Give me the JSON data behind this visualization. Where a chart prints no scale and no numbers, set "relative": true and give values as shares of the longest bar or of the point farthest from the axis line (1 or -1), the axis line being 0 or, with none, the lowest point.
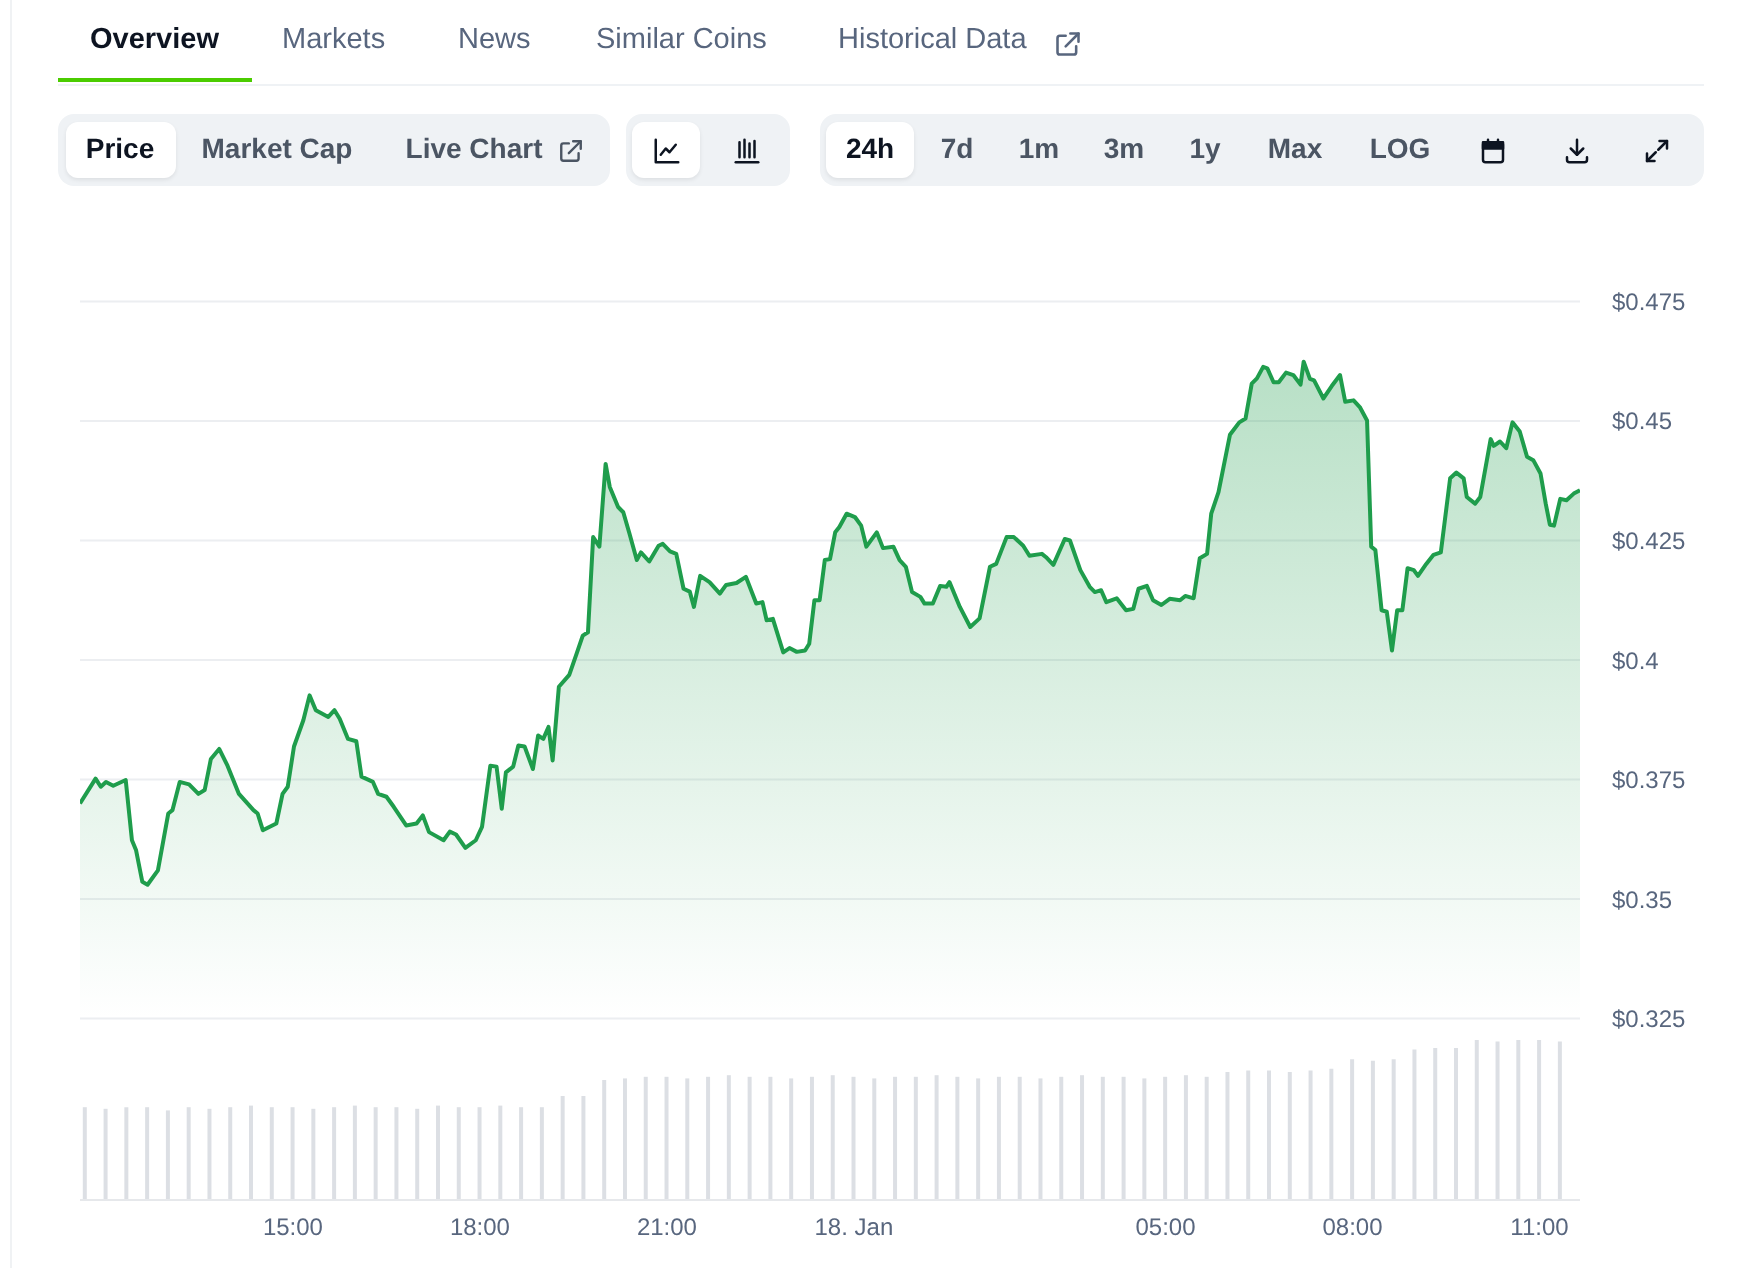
{
  "chart_data": [
    {
      "type": "area",
      "annotations": [
        "Overview",
        "Markets",
        "News",
        "Similar Coins",
        "Historical Data",
        "Price",
        "Market Cap",
        "Live Chart",
        "24h",
        "7d",
        "1m",
        "3m",
        "1y",
        "Max",
        "LOG"
      ],
      "x": [
        "--01-17T11:35",
        "--01-17T11:50",
        "--01-17T11:55",
        "--01-17T12:00",
        "--01-17T12:07",
        "--01-17T12:19",
        "--01-17T12:25",
        "--01-17T12:29",
        "--01-17T12:35",
        "--01-17T12:40",
        "--01-17T12:50",
        "--01-17T13:00",
        "--01-17T13:04",
        "--01-17T13:11",
        "--01-17T13:20",
        "--01-17T13:29",
        "--01-17T13:35",
        "--01-17T13:41",
        "--01-17T13:49",
        "--01-17T13:57",
        "--01-17T14:08",
        "--01-17T14:22",
        "--01-17T14:26",
        "--01-17T14:31",
        "--01-17T14:44",
        "--01-17T14:50",
        "--01-17T14:55",
        "--01-17T15:01",
        "--01-17T15:10",
        "--01-17T15:16",
        "--01-17T15:22",
        "--01-17T15:34",
        "--01-17T15:40",
        "--01-17T15:45",
        "--01-17T15:53",
        "--01-17T16:01",
        "--01-17T16:06",
        "--01-17T16:17",
        "--01-17T16:22",
        "--01-17T16:30",
        "--01-17T16:37",
        "--01-17T16:49",
        "--01-17T16:59",
        "--01-17T17:05",
        "--01-17T17:11",
        "--01-17T17:25",
        "--01-17T17:31",
        "--01-17T17:37",
        "--01-17T17:46",
        "--01-17T17:56",
        "--01-17T18:02",
        "--01-17T18:10",
        "--01-17T18:16",
        "--01-17T18:21",
        "--01-17T18:25",
        "--01-17T18:32",
        "--01-17T18:37",
        "--01-17T18:43",
        "--01-17T18:51",
        "--01-17T18:56",
        "--01-17T19:01",
        "--01-17T19:06",
        "--01-17T19:10",
        "--01-17T19:16",
        "--01-17T19:26",
        "--01-17T19:33",
        "--01-17T19:39",
        "--01-17T19:44",
        "--01-17T19:49",
        "--01-17T19:55",
        "--01-17T20:01",
        "--01-17T20:05",
        "--01-17T20:13",
        "--01-17T20:18",
        "--01-17T20:24",
        "--01-17T20:31",
        "--01-17T20:35",
        "--01-17T20:43",
        "--01-17T20:52",
        "--01-17T20:56",
        "--01-17T21:03",
        "--01-17T21:09",
        "--01-17T21:16",
        "--01-17T21:22",
        "--01-17T21:26",
        "--01-17T21:32",
        "--01-17T21:41",
        "--01-17T21:51",
        "--01-17T21:57",
        "--01-17T22:07",
        "--01-17T22:16",
        "--01-17T22:26",
        "--01-17T22:32",
        "--01-17T22:36",
        "--01-17T22:42",
        "--01-17T22:52",
        "--01-17T22:58",
        "--01-17T23:05",
        "--01-17T23:13",
        "--01-17T23:17",
        "--01-17T23:22",
        "--01-17T23:27",
        "--01-17T23:32",
        "--01-17T23:37",
        "--01-17T23:42",
        "--01-17T23:46",
        "--01-17T23:53",
        "--01-18T00:01",
        "--01-18T00:07",
        "--01-18T00:12",
        "--01-18T00:22",
        "--01-18T00:28",
        "--01-18T00:38",
        "--01-18T00:44",
        "--01-18T00:50",
        "--01-18T00:56",
        "--01-18T01:04",
        "--01-18T01:08",
        "--01-18T01:16",
        "--01-18T01:23",
        "--01-18T01:29",
        "--01-18T01:32",
        "--01-18T01:42",
        "--01-18T01:52",
        "--01-18T02:01",
        "--01-18T02:11",
        "--01-18T02:17",
        "--01-18T02:27",
        "--01-18T02:34",
        "--01-18T02:43",
        "--01-18T02:49",
        "--01-18T03:01",
        "--01-18T03:05",
        "--01-18T03:12",
        "--01-18T03:23",
        "--01-18T03:28",
        "--01-18T03:38",
        "--01-18T03:47",
        "--01-18T03:52",
        "--01-18T03:58",
        "--01-18T04:03",
        "--01-18T04:13",
        "--01-18T04:22",
        "--01-18T04:29",
        "--01-18T04:34",
        "--01-18T04:42",
        "--01-18T04:48",
        "--01-18T04:56",
        "--01-18T05:04",
        "--01-18T05:14",
        "--01-18T05:19",
        "--01-18T05:27",
        "--01-18T05:33",
        "--01-18T05:40",
        "--01-18T05:44",
        "--01-18T05:51",
        "--01-18T06:02",
        "--01-18T06:11",
        "--01-18T06:17",
        "--01-18T06:23",
        "--01-18T06:28",
        "--01-18T06:34",
        "--01-18T06:38",
        "--01-18T06:44",
        "--01-18T06:49",
        "--01-18T06:56",
        "--01-18T07:03",
        "--01-18T07:10",
        "--01-18T07:13",
        "--01-18T07:19",
        "--01-18T07:23",
        "--01-18T07:32",
        "--01-18T07:40",
        "--01-18T07:48",
        "--01-18T07:53",
        "--01-18T08:01",
        "--01-18T08:07",
        "--01-18T08:14",
        "--01-18T08:18",
        "--01-18T08:22",
        "--01-18T08:28",
        "--01-18T08:33",
        "--01-18T08:38",
        "--01-18T08:43",
        "--01-18T08:48",
        "--01-18T08:53",
        "--01-18T08:59",
        "--01-18T09:03",
        "--01-18T09:11",
        "--01-18T09:18",
        "--01-18T09:25",
        "--01-18T09:34",
        "--01-18T09:40",
        "--01-18T09:47",
        "--01-18T09:50",
        "--01-18T09:58",
        "--01-18T10:03",
        "--01-18T10:13",
        "--01-18T10:16",
        "--01-18T10:22",
        "--01-18T10:28",
        "--01-18T10:34",
        "--01-18T10:41",
        "--01-18T10:48",
        "--01-18T10:54",
        "--01-18T11:01",
        "--01-18T11:06",
        "--01-18T11:10",
        "--01-18T11:14",
        "--01-18T11:20",
        "--01-18T11:26",
        "--01-18T11:33",
        "--01-18T11:39"
      ],
      "series": [
        {
          "color": "#1f9d4c",
          "values": [
            0.37,
            0.3752,
            0.3735,
            0.3745,
            0.3737,
            0.3749,
            0.3623,
            0.3602,
            0.3536,
            0.353,
            0.356,
            0.3679,
            0.3686,
            0.3745,
            0.374,
            0.372,
            0.3728,
            0.3793,
            0.3814,
            0.3779,
            0.372,
            0.3686,
            0.3679,
            0.3644,
            0.3658,
            0.372,
            0.3735,
            0.3819,
            0.3874,
            0.3926,
            0.3895,
            0.3881,
            0.3895,
            0.3877,
            0.3835,
            0.383,
            0.3756,
            0.3745,
            0.372,
            0.3714,
            0.3693,
            0.3654,
            0.3658,
            0.3675,
            0.364,
            0.3623,
            0.3641,
            0.3635,
            0.3607,
            0.3623,
            0.3651,
            0.3779,
            0.3777,
            0.3689,
            0.3765,
            0.3777,
            0.3821,
            0.3819,
            0.3772,
            0.3842,
            0.3835,
            0.386,
            0.379,
            0.3944,
            0.3969,
            0.4013,
            0.4051,
            0.4058,
            0.4257,
            0.4237,
            0.441,
            0.4362,
            0.432,
            0.4309,
            0.4264,
            0.4209,
            0.4225,
            0.4206,
            0.4239,
            0.4243,
            0.4227,
            0.4222,
            0.4149,
            0.4143,
            0.4111,
            0.4176,
            0.4163,
            0.4139,
            0.4157,
            0.4161,
            0.4174,
            0.4118,
            0.4121,
            0.4083,
            0.4086,
            0.4016,
            0.4025,
            0.4017,
            0.402,
            0.4034,
            0.4125,
            0.4125,
            0.4209,
            0.4211,
            0.4267,
            0.4278,
            0.4306,
            0.4299,
            0.4281,
            0.4237,
            0.4267,
            0.4234,
            0.4237,
            0.4209,
            0.4195,
            0.4142,
            0.4132,
            0.4118,
            0.4118,
            0.4155,
            0.4153,
            0.4163,
            0.4111,
            0.4069,
            0.4087,
            0.4195,
            0.4201,
            0.4257,
            0.4257,
            0.4239,
            0.4218,
            0.4222,
            0.4215,
            0.4199,
            0.4253,
            0.425,
            0.4188,
            0.4153,
            0.4142,
            0.4146,
            0.4121,
            0.4129,
            0.4104,
            0.4107,
            0.4149,
            0.4155,
            0.4125,
            0.4115,
            0.4128,
            0.4125,
            0.4134,
            0.4129,
            0.4213,
            0.4222,
            0.4306,
            0.4351,
            0.4471,
            0.4497,
            0.4505,
            0.4578,
            0.4589,
            0.4613,
            0.461,
            0.4581,
            0.4581,
            0.4601,
            0.4596,
            0.4576,
            0.4624,
            0.4588,
            0.4585,
            0.4547,
            0.4573,
            0.4596,
            0.454,
            0.4543,
            0.4529,
            0.4501,
            0.4237,
            0.423,
            0.4104,
            0.4101,
            0.402,
            0.4104,
            0.4104,
            0.4192,
            0.4188,
            0.4176,
            0.4201,
            0.422,
            0.4225,
            0.438,
            0.4392,
            0.438,
            0.4341,
            0.4327,
            0.4341,
            0.4462,
            0.4448,
            0.4457,
            0.4443,
            0.4497,
            0.4478,
            0.4425,
            0.4418,
            0.439,
            0.4327,
            0.4283,
            0.4281,
            0.4337,
            0.4334,
            0.4348,
            0.4355
          ]
        }
      ],
      "xlim": [
        "--01-17T11:35",
        "--01-18T11:39"
      ],
      "ylim": [
        0.325,
        0.475
      ],
      "yticks": [
        {
          "value": 0.325,
          "label": "$0.325"
        },
        {
          "value": 0.35,
          "label": "$0.35"
        },
        {
          "value": 0.375,
          "label": "$0.375"
        },
        {
          "value": 0.4,
          "label": "$0.4"
        },
        {
          "value": 0.425,
          "label": "$0.425"
        },
        {
          "value": 0.45,
          "label": "$0.45"
        },
        {
          "value": 0.475,
          "label": "$0.475"
        }
      ],
      "grid": "y",
      "tick_labels": "y"
    },
    {
      "type": "bar",
      "relative": true,
      "color": "#dcdfe4",
      "x": [
        "--01-17T11:40",
        "--01-17T12:00",
        "--01-17T12:20",
        "--01-17T12:40",
        "--01-17T13:00",
        "--01-17T13:20",
        "--01-17T13:40",
        "--01-17T14:00",
        "--01-17T14:20",
        "--01-17T14:40",
        "--01-17T15:00",
        "--01-17T15:20",
        "--01-17T15:40",
        "--01-17T16:00",
        "--01-17T16:20",
        "--01-17T16:40",
        "--01-17T17:00",
        "--01-17T17:20",
        "--01-17T17:40",
        "--01-17T18:00",
        "--01-17T18:20",
        "--01-17T18:40",
        "--01-17T19:00",
        "--01-17T19:20",
        "--01-17T19:40",
        "--01-17T20:00",
        "--01-17T20:20",
        "--01-17T20:40",
        "--01-17T21:00",
        "--01-17T21:20",
        "--01-17T21:40",
        "--01-17T22:00",
        "--01-17T22:20",
        "--01-17T22:40",
        "--01-17T23:00",
        "--01-17T23:20",
        "--01-17T23:40",
        "--01-18T00:00",
        "--01-18T00:20",
        "--01-18T00:40",
        "--01-18T01:00",
        "--01-18T01:20",
        "--01-18T01:40",
        "--01-18T02:00",
        "--01-18T02:20",
        "--01-18T02:40",
        "--01-18T03:00",
        "--01-18T03:20",
        "--01-18T03:40",
        "--01-18T04:00",
        "--01-18T04:20",
        "--01-18T04:40",
        "--01-18T05:00",
        "--01-18T05:20",
        "--01-18T05:40",
        "--01-18T06:00",
        "--01-18T06:20",
        "--01-18T06:40",
        "--01-18T07:00",
        "--01-18T07:20",
        "--01-18T07:40",
        "--01-18T08:00",
        "--01-18T08:20",
        "--01-18T08:40",
        "--01-18T09:00",
        "--01-18T09:20",
        "--01-18T09:40",
        "--01-18T10:00",
        "--01-18T10:20",
        "--01-18T10:40",
        "--01-18T11:00",
        "--01-18T11:20"
      ],
      "values": [
        0.58,
        0.57,
        0.58,
        0.58,
        0.56,
        0.58,
        0.57,
        0.58,
        0.59,
        0.58,
        0.58,
        0.57,
        0.58,
        0.59,
        0.58,
        0.58,
        0.57,
        0.59,
        0.58,
        0.58,
        0.59,
        0.58,
        0.58,
        0.65,
        0.65,
        0.75,
        0.76,
        0.77,
        0.77,
        0.76,
        0.77,
        0.78,
        0.77,
        0.77,
        0.76,
        0.77,
        0.78,
        0.77,
        0.76,
        0.77,
        0.77,
        0.78,
        0.77,
        0.76,
        0.77,
        0.77,
        0.76,
        0.77,
        0.78,
        0.77,
        0.77,
        0.76,
        0.77,
        0.78,
        0.77,
        0.8,
        0.81,
        0.81,
        0.8,
        0.81,
        0.82,
        0.88,
        0.87,
        0.88,
        0.94,
        0.95,
        0.95,
        1,
        0.99,
        1,
        1,
        0.99
      ],
      "xlim": [
        "--01-17T11:35",
        "--01-18T11:39"
      ],
      "xticks": [
        {
          "value": "--01-17T15:00",
          "label": "15:00"
        },
        {
          "value": "--01-17T18:00",
          "label": "18:00"
        },
        {
          "value": "--01-17T21:00",
          "label": "21:00"
        },
        {
          "value": "--01-18T00:00",
          "label": "18. Jan"
        },
        {
          "value": "--01-18T05:00",
          "label": "05:00"
        },
        {
          "value": "--01-18T08:00",
          "label": "08:00"
        },
        {
          "value": "--01-18T11:00",
          "label": "11:00"
        }
      ],
      "tick_labels": "x"
    }
  ]
}
